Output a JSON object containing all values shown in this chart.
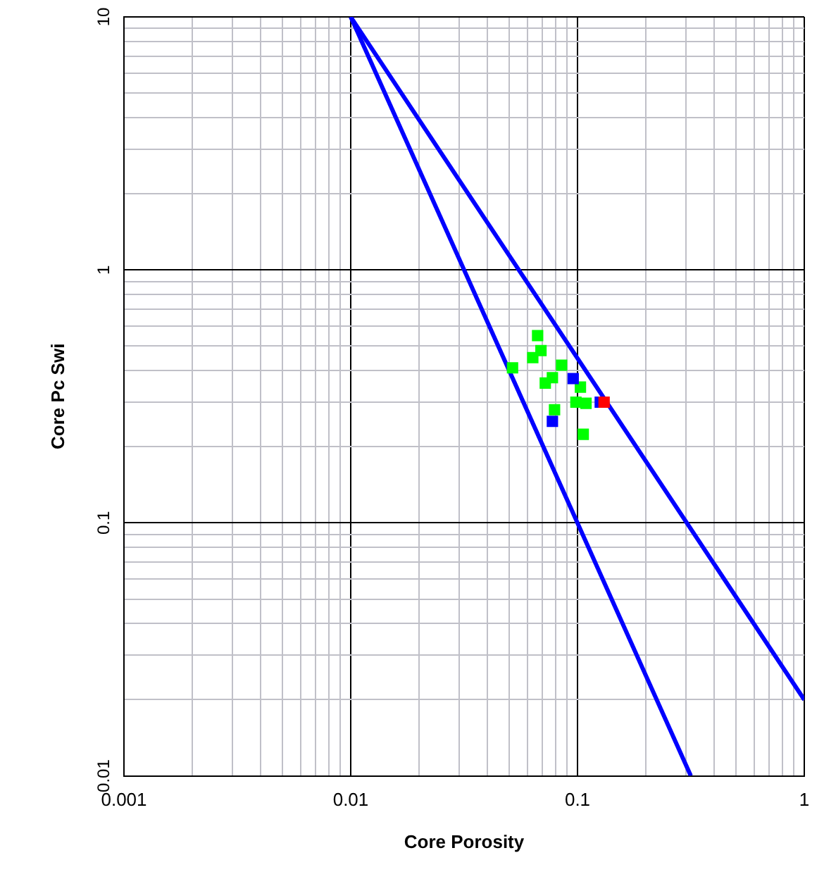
{
  "chart_data": {
    "type": "scatter",
    "xlabel": "Core Porosity",
    "ylabel": "Core Pc Swi",
    "log": "xy",
    "grid": true,
    "legend": false,
    "marker": "square",
    "xlim": [
      0.001,
      1
    ],
    "ylim": [
      0.01,
      10
    ],
    "xticks": [
      0.001,
      {
        "value": 0.002,
        "label": null
      },
      {
        "value": 0.003,
        "label": null
      },
      {
        "value": 0.004,
        "label": null
      },
      {
        "value": 0.005,
        "label": null
      },
      {
        "value": 0.006,
        "label": null
      },
      {
        "value": 0.007,
        "label": null
      },
      {
        "value": 0.008,
        "label": null
      },
      {
        "value": 0.009,
        "label": null
      },
      0.01,
      {
        "value": 0.02,
        "label": null
      },
      {
        "value": 0.03,
        "label": null
      },
      {
        "value": 0.04,
        "label": null
      },
      {
        "value": 0.05,
        "label": null
      },
      {
        "value": 0.06,
        "label": null
      },
      {
        "value": 0.07,
        "label": null
      },
      {
        "value": 0.08,
        "label": null
      },
      {
        "value": 0.09,
        "label": null
      },
      0.1,
      {
        "value": 0.2,
        "label": null
      },
      {
        "value": 0.3,
        "label": null
      },
      {
        "value": 0.4,
        "label": null
      },
      {
        "value": 0.5,
        "label": null
      },
      {
        "value": 0.6,
        "label": null
      },
      {
        "value": 0.7,
        "label": null
      },
      {
        "value": 0.8,
        "label": null
      },
      {
        "value": 0.9,
        "label": null
      },
      1
    ],
    "yticks": [
      0.01,
      {
        "value": 0.02,
        "label": null
      },
      {
        "value": 0.03,
        "label": null
      },
      {
        "value": 0.04,
        "label": null
      },
      {
        "value": 0.05,
        "label": null
      },
      {
        "value": 0.06,
        "label": null
      },
      {
        "value": 0.07,
        "label": null
      },
      {
        "value": 0.08,
        "label": null
      },
      {
        "value": 0.09,
        "label": null
      },
      0.1,
      {
        "value": 0.2,
        "label": null
      },
      {
        "value": 0.3,
        "label": null
      },
      {
        "value": 0.4,
        "label": null
      },
      {
        "value": 0.5,
        "label": null
      },
      {
        "value": 0.6,
        "label": null
      },
      {
        "value": 0.7,
        "label": null
      },
      {
        "value": 0.8,
        "label": null
      },
      {
        "value": 0.9,
        "label": null
      },
      1,
      {
        "value": 2,
        "label": null
      },
      {
        "value": 3,
        "label": null
      },
      {
        "value": 4,
        "label": null
      },
      {
        "value": 5,
        "label": null
      },
      {
        "value": 6,
        "label": null
      },
      {
        "value": 7,
        "label": null
      },
      {
        "value": 8,
        "label": null
      },
      {
        "value": 9,
        "label": null
      },
      10
    ],
    "series": [
      {
        "type": "line",
        "color": "#0000ff",
        "marker": "none",
        "x": [
          0.01,
          0.316
        ],
        "values": [
          10,
          0.01
        ]
      },
      {
        "type": "line",
        "color": "#0000ff",
        "marker": "none",
        "x": [
          0.01,
          1
        ],
        "values": [
          10,
          0.02
        ]
      },
      {
        "color": "#00ff00",
        "x": [
          0.0667,
          0.069,
          0.0635,
          0.0517,
          0.0851,
          0.0775,
          0.0721,
          0.103,
          0.0792,
          0.0984,
          0.109,
          0.106
        ],
        "values": [
          0.55,
          0.48,
          0.45,
          0.41,
          0.42,
          0.375,
          0.357,
          0.344,
          0.28,
          0.3,
          0.297,
          0.224
        ]
      },
      {
        "color": "#0000ff",
        "x": [
          0.0957,
          0.0775,
          0.126
        ],
        "values": [
          0.372,
          0.252,
          0.3
        ]
      },
      {
        "color": "#ff0000",
        "x": [
          0.131
        ],
        "values": [
          0.3
        ]
      }
    ]
  }
}
